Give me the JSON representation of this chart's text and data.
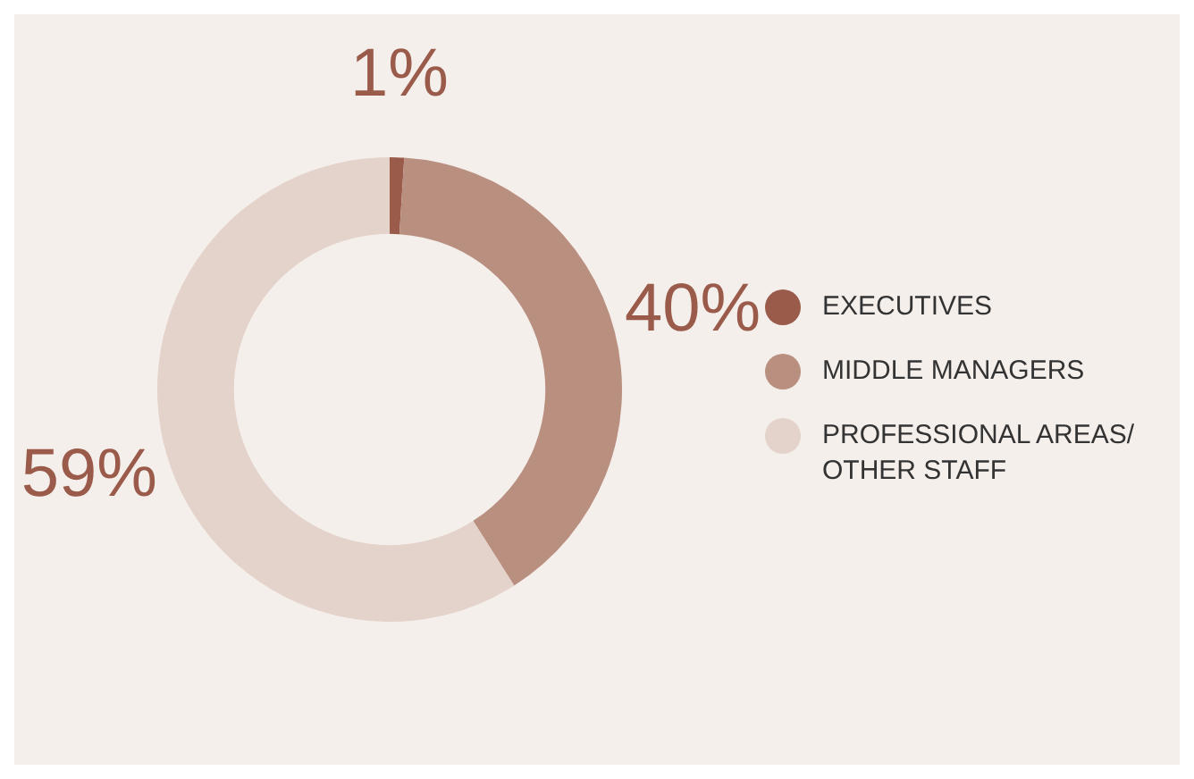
{
  "chart_data": {
    "type": "donut",
    "categories": [
      "EXECUTIVES",
      "MIDDLE MANAGERS",
      "PROFESSIONAL AREAS/ OTHER STAFF"
    ],
    "values": [
      1,
      40,
      59
    ],
    "colors": [
      "#9a5b4a",
      "#b98f80",
      "#e3d3ca"
    ],
    "value_labels": [
      "1%",
      "40%",
      "59%"
    ],
    "legend": "right"
  }
}
